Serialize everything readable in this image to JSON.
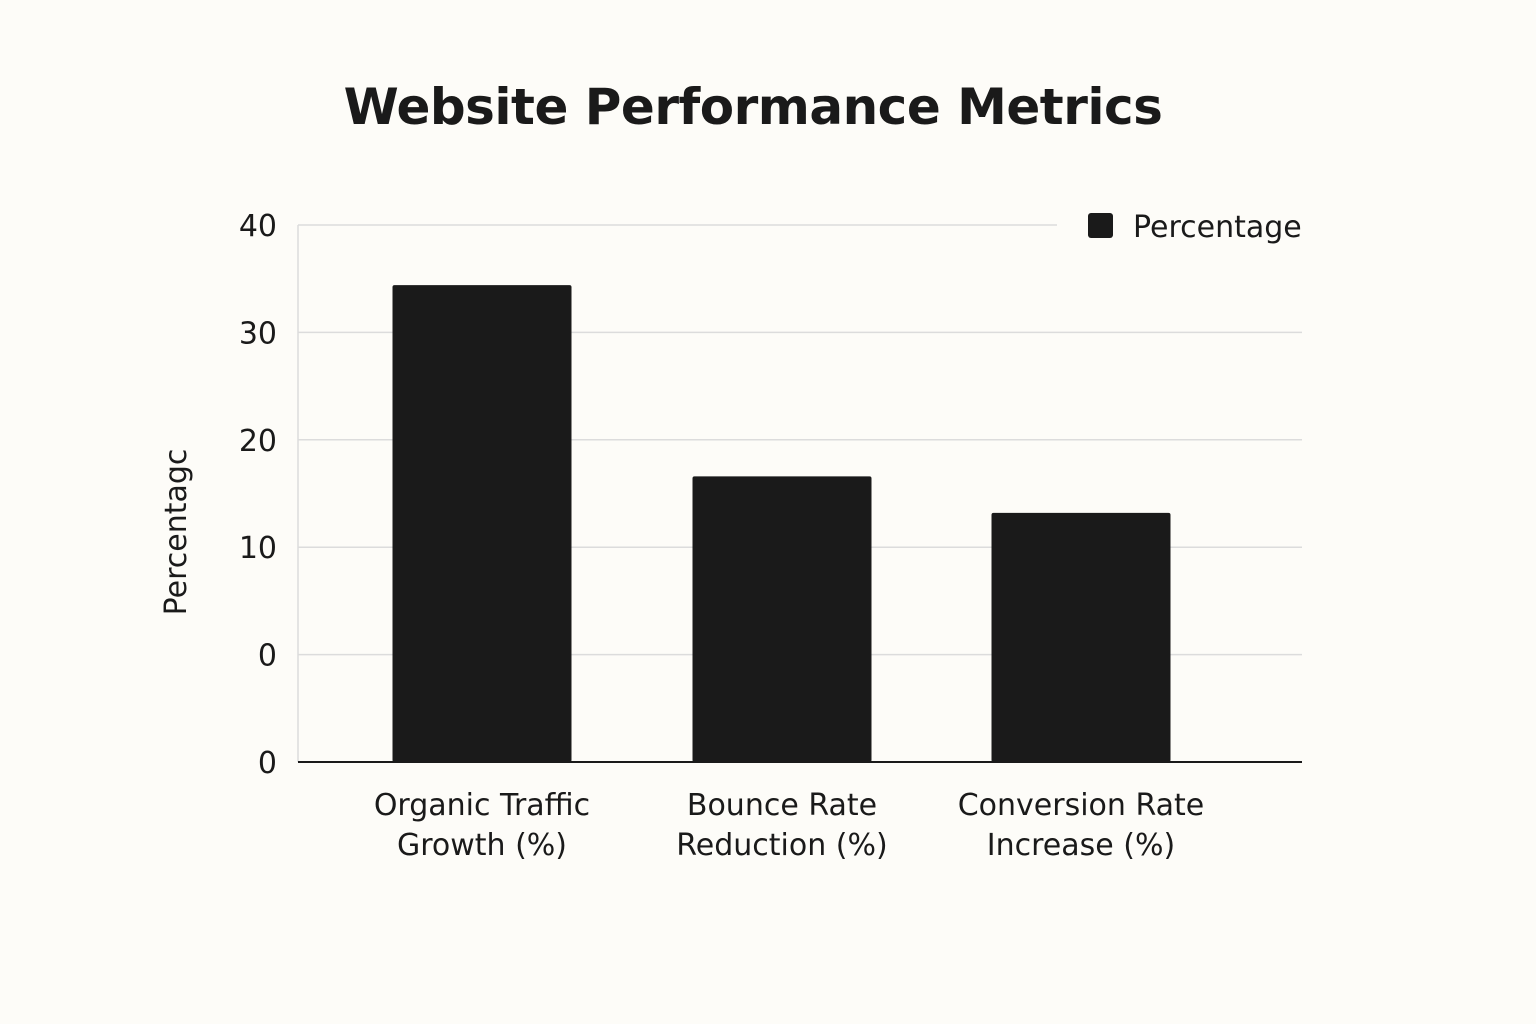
{
  "chart_data": {
    "type": "bar",
    "title": "Website Performance Metrics",
    "xlabel": "",
    "ylabel": "Percentagc",
    "categories": [
      [
        "Organic Traffic",
        "Growth (%)"
      ],
      [
        "Bounce Rate",
        "Reduction (%)"
      ],
      [
        "Conversion Rate",
        "Increase (%)"
      ]
    ],
    "series": [
      {
        "name": "Percentage",
        "values": [
          34.4,
          16.6,
          13.2
        ],
        "color": "#1a1a1a"
      }
    ],
    "y_tick_labels": [
      "40",
      "30",
      "20",
      "10",
      "0",
      "0"
    ],
    "grid": true,
    "legend": "top-right",
    "colors": {
      "background": "#fdfcf8",
      "grid": "#dcdcdc",
      "axis": "#1a1a1a"
    }
  }
}
